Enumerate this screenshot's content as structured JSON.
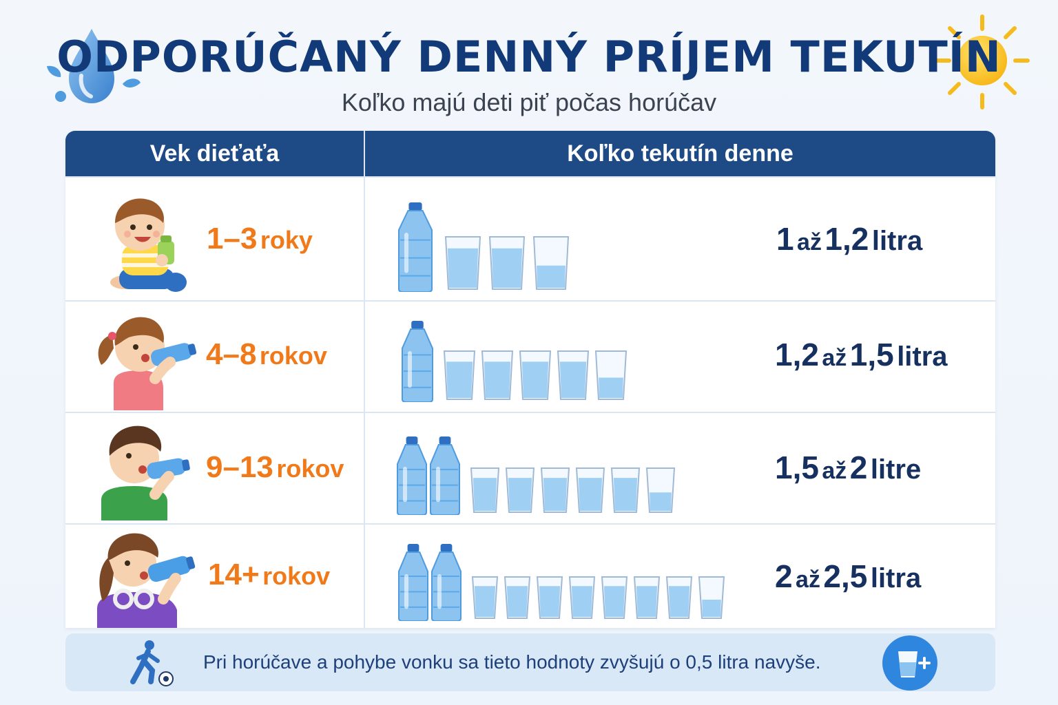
{
  "header": {
    "title": "ODPORÚČANÝ DENNÝ PRÍJEM TEKUTÍN",
    "subtitle": "Koľko majú deti piť počas horúčav"
  },
  "table": {
    "col_age": "Vek dieťaťa",
    "col_amount": "Koľko tekutín denne",
    "rows": [
      {
        "age_num": "1–3",
        "age_unit": "roky",
        "amt_a": "1",
        "amt_sep": "až",
        "amt_b": "1,2",
        "amt_unit": "litra",
        "bottles": 1,
        "glasses": 3
      },
      {
        "age_num": "4–8",
        "age_unit": "rokov",
        "amt_a": "1,2",
        "amt_sep": "až",
        "amt_b": "1,5",
        "amt_unit": "litra",
        "bottles": 1,
        "glasses": 5
      },
      {
        "age_num": "9–13",
        "age_unit": "rokov",
        "amt_a": "1,5",
        "amt_sep": "až",
        "amt_b": "2",
        "amt_unit": "litre",
        "bottles": 2,
        "glasses": 6
      },
      {
        "age_num": "14+",
        "age_unit": "rokov",
        "amt_a": "2",
        "amt_sep": "až",
        "amt_b": "2,5",
        "amt_unit": "litra",
        "bottles": 2,
        "glasses": 8
      }
    ]
  },
  "footer": {
    "note": "Pri horúčave a pohybe vonku sa tieto hodnoty zvyšujú o 0,5 litra navyše.",
    "icon_left": "running-child-icon",
    "icon_right": "glass-plus-icon"
  },
  "colors": {
    "navy": "#1e4a85",
    "title": "#123a78",
    "age_orange": "#f07a1a",
    "water": "#8cc3ef",
    "footer_bg": "#d9e8f7"
  }
}
